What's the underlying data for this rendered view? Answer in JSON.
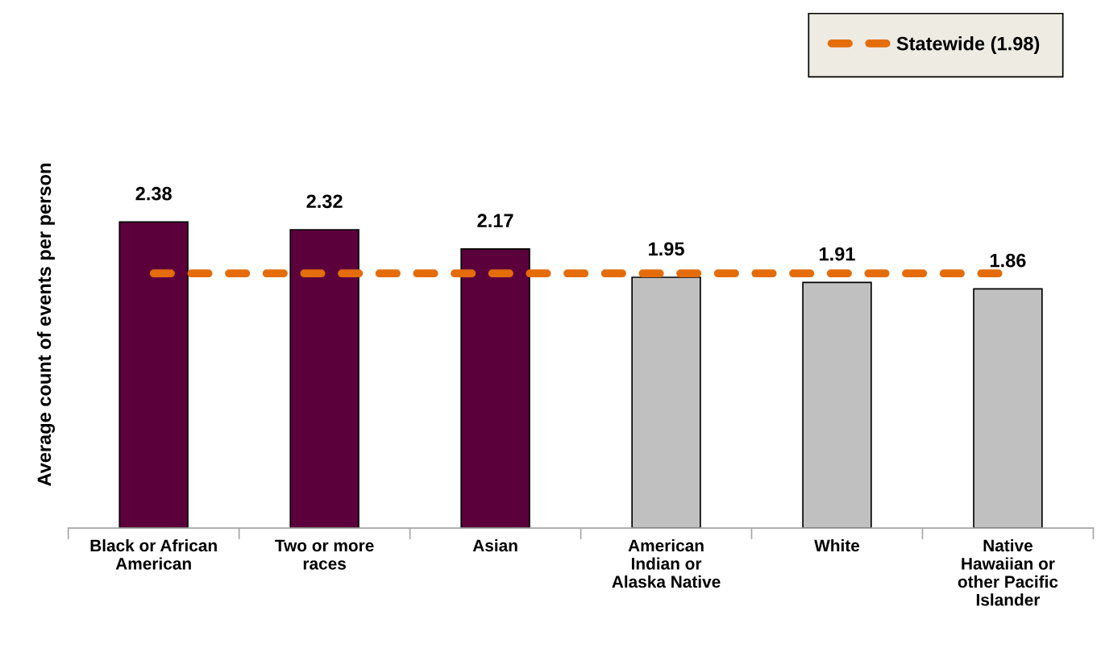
{
  "chart_data": {
    "type": "bar",
    "ylabel": "Average count of events per person",
    "categories": [
      "Black or African\nAmerican",
      "Two or more\nraces",
      "Asian",
      "American\nIndian or\nAlaska Native",
      "White",
      "Native\nHawaiian or\nother Pacific\nIslander"
    ],
    "values": [
      2.38,
      2.32,
      2.17,
      1.95,
      1.91,
      1.86
    ],
    "colors": [
      "#5c003c",
      "#5c003c",
      "#5c003c",
      "#c0c0c0",
      "#c0c0c0",
      "#c0c0c0"
    ],
    "tick_labels": "x",
    "data_labels": true,
    "grid": false,
    "legend": "top right",
    "ref_lines": [
      {
        "axis": "y",
        "value": 1.98,
        "label": "Statewide (1.98)",
        "color": "#e46c0a",
        "line_style": "dashed"
      }
    ]
  }
}
